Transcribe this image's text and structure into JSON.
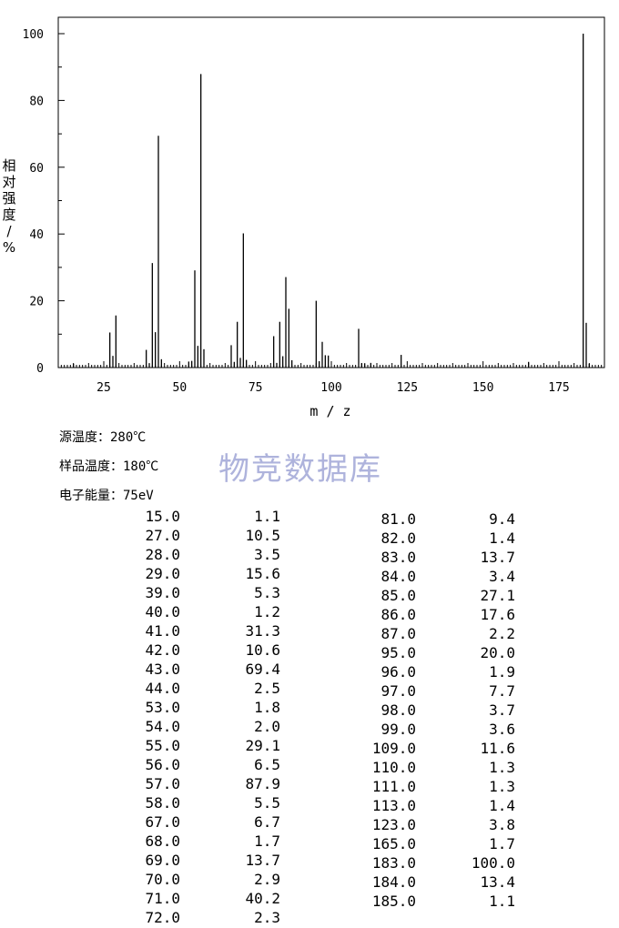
{
  "chart_data": {
    "type": "bar",
    "xlabel": "m/z",
    "ylabel": "相对强度/%",
    "xlim": [
      10,
      190
    ],
    "ylim": [
      0,
      100
    ],
    "x_ticks": [
      25,
      50,
      75,
      100,
      125,
      150,
      175
    ],
    "y_ticks": [
      0,
      20,
      40,
      60,
      80,
      100
    ],
    "peaks": [
      {
        "mz": 15.0,
        "intensity": 1.1
      },
      {
        "mz": 27.0,
        "intensity": 10.5
      },
      {
        "mz": 28.0,
        "intensity": 3.5
      },
      {
        "mz": 29.0,
        "intensity": 15.6
      },
      {
        "mz": 39.0,
        "intensity": 5.3
      },
      {
        "mz": 40.0,
        "intensity": 1.2
      },
      {
        "mz": 41.0,
        "intensity": 31.3
      },
      {
        "mz": 42.0,
        "intensity": 10.6
      },
      {
        "mz": 43.0,
        "intensity": 69.4
      },
      {
        "mz": 44.0,
        "intensity": 2.5
      },
      {
        "mz": 53.0,
        "intensity": 1.8
      },
      {
        "mz": 54.0,
        "intensity": 2.0
      },
      {
        "mz": 55.0,
        "intensity": 29.1
      },
      {
        "mz": 56.0,
        "intensity": 6.5
      },
      {
        "mz": 57.0,
        "intensity": 87.9
      },
      {
        "mz": 58.0,
        "intensity": 5.5
      },
      {
        "mz": 67.0,
        "intensity": 6.7
      },
      {
        "mz": 68.0,
        "intensity": 1.7
      },
      {
        "mz": 69.0,
        "intensity": 13.7
      },
      {
        "mz": 70.0,
        "intensity": 2.9
      },
      {
        "mz": 71.0,
        "intensity": 40.2
      },
      {
        "mz": 72.0,
        "intensity": 2.3
      },
      {
        "mz": 81.0,
        "intensity": 9.4
      },
      {
        "mz": 82.0,
        "intensity": 1.4
      },
      {
        "mz": 83.0,
        "intensity": 13.7
      },
      {
        "mz": 84.0,
        "intensity": 3.4
      },
      {
        "mz": 85.0,
        "intensity": 27.1
      },
      {
        "mz": 86.0,
        "intensity": 17.6
      },
      {
        "mz": 87.0,
        "intensity": 2.2
      },
      {
        "mz": 95.0,
        "intensity": 20.0
      },
      {
        "mz": 96.0,
        "intensity": 1.9
      },
      {
        "mz": 97.0,
        "intensity": 7.7
      },
      {
        "mz": 98.0,
        "intensity": 3.7
      },
      {
        "mz": 99.0,
        "intensity": 3.6
      },
      {
        "mz": 109.0,
        "intensity": 11.6
      },
      {
        "mz": 110.0,
        "intensity": 1.3
      },
      {
        "mz": 111.0,
        "intensity": 1.3
      },
      {
        "mz": 113.0,
        "intensity": 1.4
      },
      {
        "mz": 123.0,
        "intensity": 3.8
      },
      {
        "mz": 165.0,
        "intensity": 1.7
      },
      {
        "mz": 183.0,
        "intensity": 100.0
      },
      {
        "mz": 184.0,
        "intensity": 13.4
      },
      {
        "mz": 185.0,
        "intensity": 1.1
      }
    ]
  },
  "info": {
    "source_temp": "源温度：280℃",
    "sample_temp": "样品温度：180℃",
    "electron_energy": "电子能量：75eV"
  },
  "watermark": "物竞数据库",
  "table": {
    "left": [
      [
        "15.0",
        "1.1"
      ],
      [
        "27.0",
        "10.5"
      ],
      [
        "28.0",
        "3.5"
      ],
      [
        "29.0",
        "15.6"
      ],
      [
        "39.0",
        "5.3"
      ],
      [
        "40.0",
        "1.2"
      ],
      [
        "41.0",
        "31.3"
      ],
      [
        "42.0",
        "10.6"
      ],
      [
        "43.0",
        "69.4"
      ],
      [
        "44.0",
        "2.5"
      ],
      [
        "53.0",
        "1.8"
      ],
      [
        "54.0",
        "2.0"
      ],
      [
        "55.0",
        "29.1"
      ],
      [
        "56.0",
        "6.5"
      ],
      [
        "57.0",
        "87.9"
      ],
      [
        "58.0",
        "5.5"
      ],
      [
        "67.0",
        "6.7"
      ],
      [
        "68.0",
        "1.7"
      ],
      [
        "69.0",
        "13.7"
      ],
      [
        "70.0",
        "2.9"
      ],
      [
        "71.0",
        "40.2"
      ],
      [
        "72.0",
        "2.3"
      ]
    ],
    "right": [
      [
        "81.0",
        "9.4"
      ],
      [
        "82.0",
        "1.4"
      ],
      [
        "83.0",
        "13.7"
      ],
      [
        "84.0",
        "3.4"
      ],
      [
        "85.0",
        "27.1"
      ],
      [
        "86.0",
        "17.6"
      ],
      [
        "87.0",
        "2.2"
      ],
      [
        "95.0",
        "20.0"
      ],
      [
        "96.0",
        "1.9"
      ],
      [
        "97.0",
        "7.7"
      ],
      [
        "98.0",
        "3.7"
      ],
      [
        "99.0",
        "3.6"
      ],
      [
        "109.0",
        "11.6"
      ],
      [
        "110.0",
        "1.3"
      ],
      [
        "111.0",
        "1.3"
      ],
      [
        "113.0",
        "1.4"
      ],
      [
        "123.0",
        "3.8"
      ],
      [
        "165.0",
        "1.7"
      ],
      [
        "183.0",
        "100.0"
      ],
      [
        "184.0",
        "13.4"
      ],
      [
        "185.0",
        "1.1"
      ]
    ]
  }
}
